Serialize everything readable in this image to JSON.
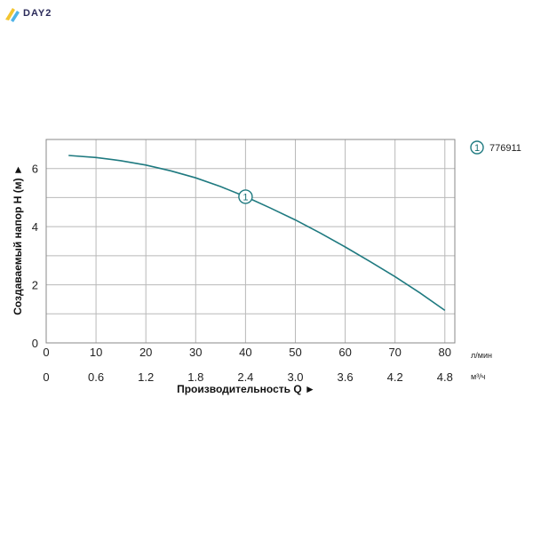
{
  "brand": {
    "name": "DAY2"
  },
  "colors": {
    "curve": "#1f7a80",
    "grid": "#b9b9b9",
    "axis": "#222222"
  },
  "chart_data": {
    "type": "line",
    "title": "",
    "xlabel": "Производительность Q ►",
    "ylabel": "Создаваемый напор H (м) ►",
    "x_unit": "л/мин",
    "x2_unit": "м³/ч",
    "xlim": [
      0,
      82
    ],
    "ylim": [
      0,
      7
    ],
    "x_ticks": [
      "0",
      "10",
      "20",
      "30",
      "40",
      "50",
      "60",
      "70",
      "80"
    ],
    "x2_ticks": [
      "0",
      "0.6",
      "1.2",
      "1.8",
      "2.4",
      "3.0",
      "3.6",
      "4.2",
      "4.8"
    ],
    "y_ticks": [
      "0",
      "2",
      "4",
      "6"
    ],
    "grid": true,
    "legend_position": "top-right",
    "series": [
      {
        "name": "776911",
        "marker_label": "1",
        "x": [
          4.5,
          10,
          15,
          20,
          25,
          30,
          35,
          40,
          45,
          50,
          55,
          60,
          65,
          70,
          75,
          80
        ],
        "y": [
          6.45,
          6.38,
          6.27,
          6.12,
          5.92,
          5.68,
          5.38,
          5.03,
          4.64,
          4.23,
          3.78,
          3.3,
          2.8,
          2.28,
          1.72,
          1.12
        ]
      }
    ]
  }
}
